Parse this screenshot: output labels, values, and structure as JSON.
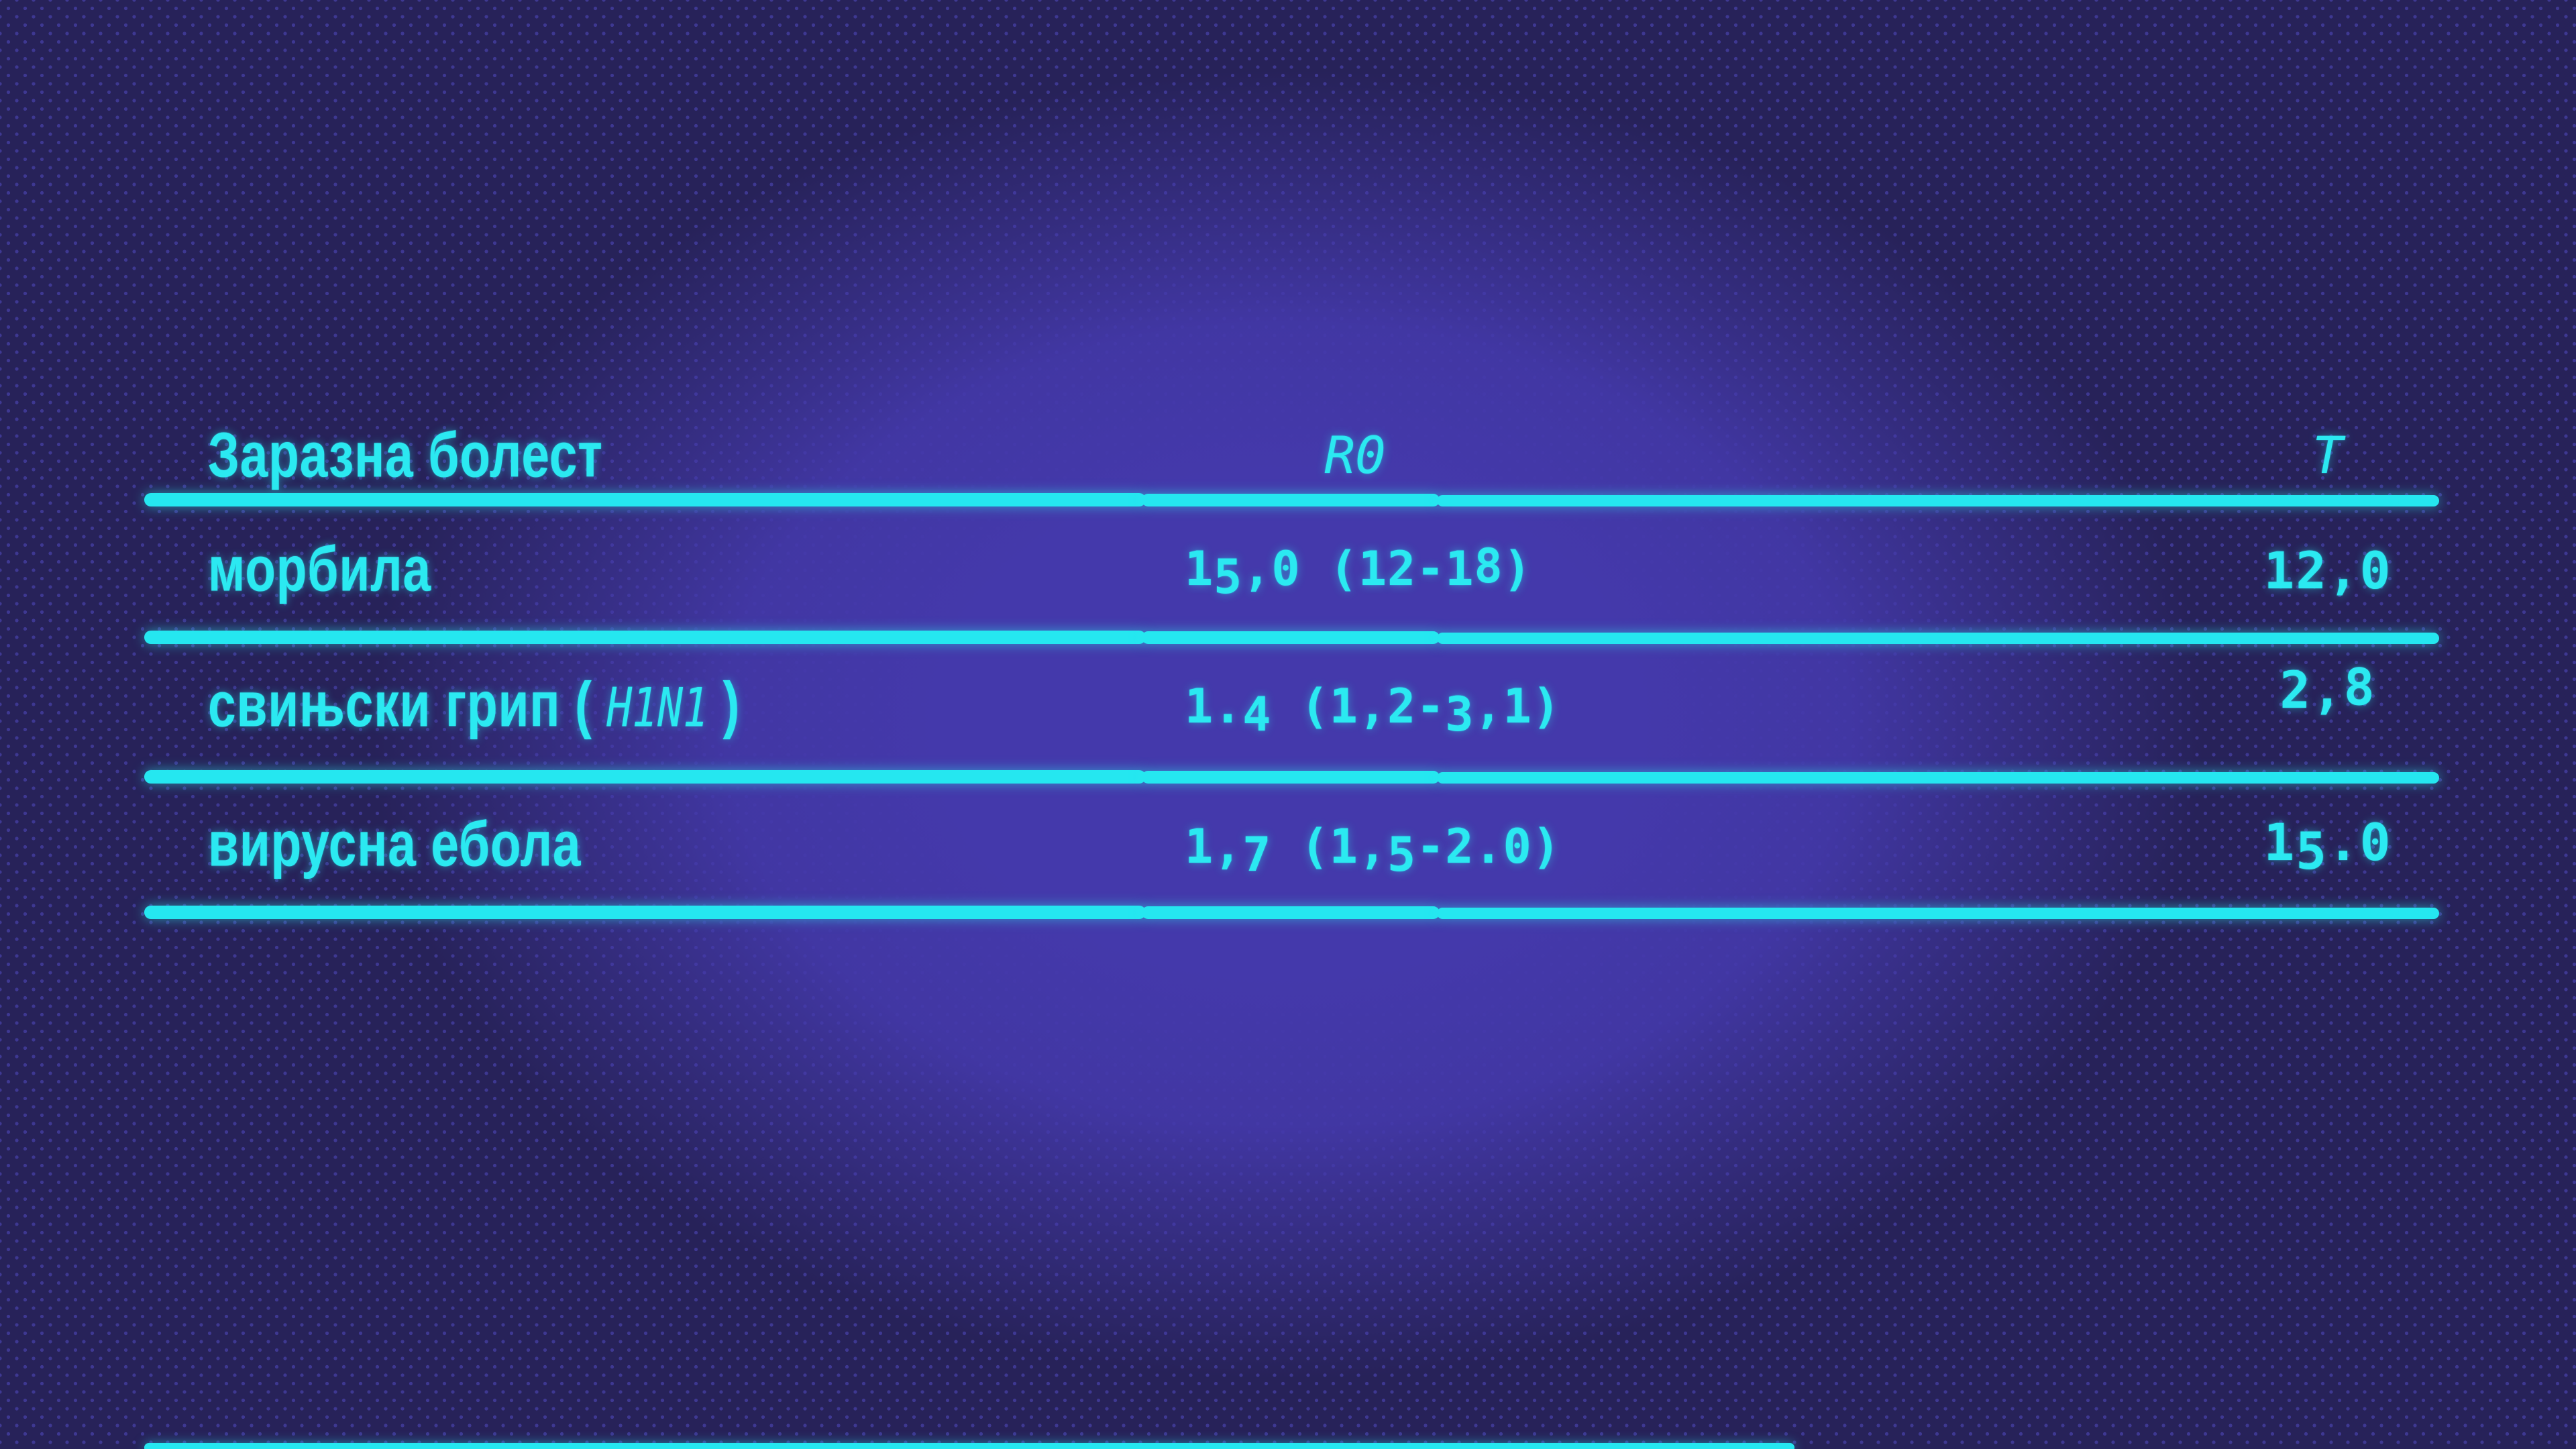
{
  "slide": {
    "type": "quiz-table-slide",
    "language": "Serbian (Cyrillic)"
  },
  "colors": {
    "accent_cyan": "#2BE9F1",
    "background_center": "#4439AB",
    "background_edge": "#272259",
    "dot_pattern": "#4D47B5"
  },
  "table": {
    "headers": {
      "disease": "Заразна болест",
      "r0": "R0",
      "t": "T"
    },
    "rows": [
      {
        "name_pre": "морбила",
        "name_italic": "",
        "name_post": "",
        "r0": "15,0 (12-18)",
        "t": "12,0"
      },
      {
        "name_pre": "свињски грип ( ",
        "name_italic": "H1N1",
        "name_post": " )",
        "r0": "1.4 (1,2-3,1)",
        "t": "2,8"
      },
      {
        "name_pre": "вирусна ебола",
        "name_italic": "",
        "name_post": "",
        "r0": "1,7 (1,5-2.0)",
        "t": "15.0"
      }
    ]
  },
  "chart_data": {
    "type": "table",
    "columns": [
      "Заразна болест",
      "R0",
      "T"
    ],
    "rows": [
      [
        "морбила",
        "15,0 (12-18)",
        "12,0"
      ],
      [
        "свињски грип ( H1N1 )",
        "1.4 (1,2-3,1)",
        "2,8"
      ],
      [
        "вирусна ебола",
        "1,7 (1,5-2.0)",
        "15.0"
      ]
    ]
  }
}
